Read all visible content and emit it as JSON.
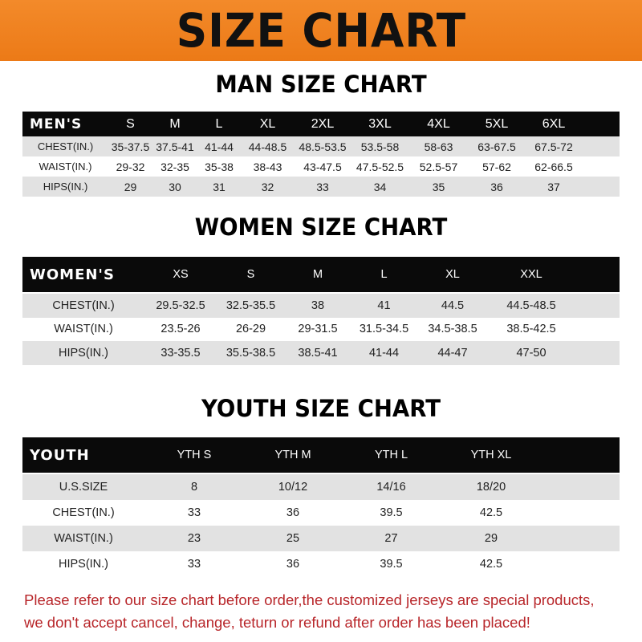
{
  "title": "SIZE CHART",
  "colors": {
    "banner": "#ef8020",
    "header_row": "#0a0a0a",
    "stripe": "#e2e2e2",
    "note": "#b8262a"
  },
  "men": {
    "title": "MAN SIZE CHART",
    "columns": [
      "MEN'S",
      "S",
      "M",
      "L",
      "XL",
      "2XL",
      "3XL",
      "4XL",
      "5XL",
      "6XL"
    ],
    "rows": [
      [
        "CHEST(IN.)",
        "35-37.5",
        "37.5-41",
        "41-44",
        "44-48.5",
        "48.5-53.5",
        "53.5-58",
        "58-63",
        "63-67.5",
        "67.5-72"
      ],
      [
        "WAIST(IN.)",
        "29-32",
        "32-35",
        "35-38",
        "38-43",
        "43-47.5",
        "47.5-52.5",
        "52.5-57",
        "57-62",
        "62-66.5"
      ],
      [
        "HIPS(IN.)",
        "29",
        "30",
        "31",
        "32",
        "33",
        "34",
        "35",
        "36",
        "37"
      ]
    ]
  },
  "women": {
    "title": "WOMEN SIZE CHART",
    "columns": [
      "WOMEN'S",
      "XS",
      "S",
      "M",
      "L",
      "XL",
      "XXL"
    ],
    "rows": [
      [
        "CHEST(IN.)",
        "29.5-32.5",
        "32.5-35.5",
        "38",
        "41",
        "44.5",
        "44.5-48.5"
      ],
      [
        "WAIST(IN.)",
        "23.5-26",
        "26-29",
        "29-31.5",
        "31.5-34.5",
        "34.5-38.5",
        "38.5-42.5"
      ],
      [
        "HIPS(IN.)",
        "33-35.5",
        "35.5-38.5",
        "38.5-41",
        "41-44",
        "44-47",
        "47-50"
      ]
    ]
  },
  "youth": {
    "title": "YOUTH SIZE CHART",
    "columns": [
      "YOUTH",
      "YTH S",
      "YTH M",
      "YTH L",
      "YTH XL"
    ],
    "rows": [
      [
        "U.S.SIZE",
        "8",
        "10/12",
        "14/16",
        "18/20"
      ],
      [
        "CHEST(IN.)",
        "33",
        "36",
        "39.5",
        "42.5"
      ],
      [
        "WAIST(IN.)",
        "23",
        "25",
        "27",
        "29"
      ],
      [
        "HIPS(IN.)",
        "33",
        "36",
        "39.5",
        "42.5"
      ]
    ]
  },
  "note": {
    "line1": "Please refer to our size chart before order,the customized jerseys are special products,",
    "line2": "we don't accept cancel, change, teturn or refund after order has been placed!"
  }
}
